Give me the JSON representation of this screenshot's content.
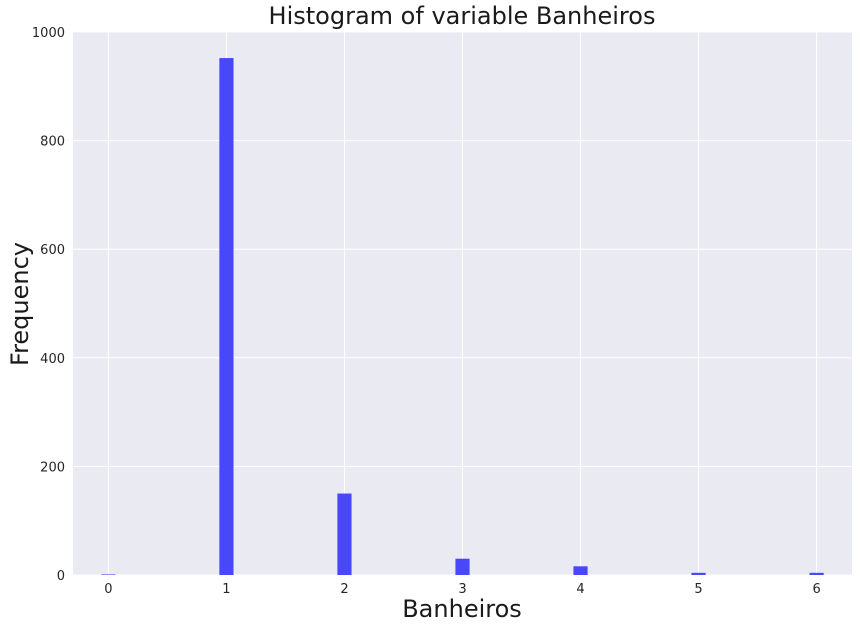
{
  "chart_data": {
    "type": "bar",
    "title": "Histogram of variable Banheiros",
    "xlabel": "Banheiros",
    "ylabel": "Frequency",
    "x_ticks": [
      0,
      1,
      2,
      3,
      4,
      5,
      6
    ],
    "y_ticks": [
      0,
      200,
      400,
      600,
      800,
      1000
    ],
    "xlim": [
      -0.3,
      6.3
    ],
    "ylim": [
      0,
      1000
    ],
    "bin_width": 0.12,
    "bins": [
      {
        "x": 0,
        "value": 1
      },
      {
        "x": 1,
        "value": 952
      },
      {
        "x": 2,
        "value": 150
      },
      {
        "x": 3,
        "value": 30
      },
      {
        "x": 4,
        "value": 16
      },
      {
        "x": 5,
        "value": 4
      },
      {
        "x": 6,
        "value": 4
      }
    ],
    "bar_color": "#4848F8",
    "background_color": "#EAEAF2",
    "grid": true,
    "legend": "none"
  }
}
